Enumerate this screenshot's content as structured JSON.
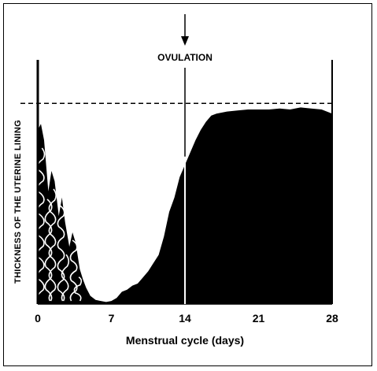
{
  "chart_data": {
    "type": "area",
    "title": "",
    "xlabel": "Menstrual cycle (days)",
    "ylabel": "THICKNESS OF THE UTERINE LINING",
    "xlim": [
      0,
      28
    ],
    "ylim": [
      0,
      1.0
    ],
    "xticks": [
      0,
      7,
      14,
      21,
      28
    ],
    "grid": false,
    "legend": "none",
    "annotations": [
      {
        "text": "OVULATION",
        "x": 14
      }
    ],
    "reference_line": {
      "y": 0.98,
      "style": "dashed"
    },
    "series": [
      {
        "x": [
          0,
          0.3,
          0.6,
          1.0,
          1.3,
          1.6,
          2.0,
          2.3,
          2.6,
          3.0,
          3.3,
          3.6,
          4.0,
          4.3,
          4.6,
          5.0,
          5.5,
          6.0,
          6.5,
          7.0,
          7.5,
          8.0,
          8.5,
          9.0,
          9.5,
          10.0,
          10.5,
          11.0,
          11.5,
          12.0,
          12.5,
          13.0,
          13.5,
          14.0,
          14.5,
          15.0,
          15.5,
          16.0,
          16.5,
          17.0,
          18.0,
          19.0,
          20.0,
          21.0,
          22.0,
          23.0,
          24.0,
          25.0,
          26.0,
          27.0,
          27.5,
          28.0
        ],
        "values": [
          0.85,
          0.88,
          0.8,
          0.55,
          0.65,
          0.6,
          0.43,
          0.52,
          0.4,
          0.28,
          0.35,
          0.3,
          0.17,
          0.12,
          0.08,
          0.04,
          0.02,
          0.015,
          0.01,
          0.015,
          0.03,
          0.06,
          0.07,
          0.09,
          0.1,
          0.13,
          0.16,
          0.2,
          0.24,
          0.33,
          0.45,
          0.52,
          0.62,
          0.68,
          0.74,
          0.8,
          0.85,
          0.89,
          0.92,
          0.93,
          0.94,
          0.945,
          0.95,
          0.95,
          0.95,
          0.955,
          0.95,
          0.96,
          0.955,
          0.95,
          0.94,
          0.93
        ]
      }
    ]
  }
}
